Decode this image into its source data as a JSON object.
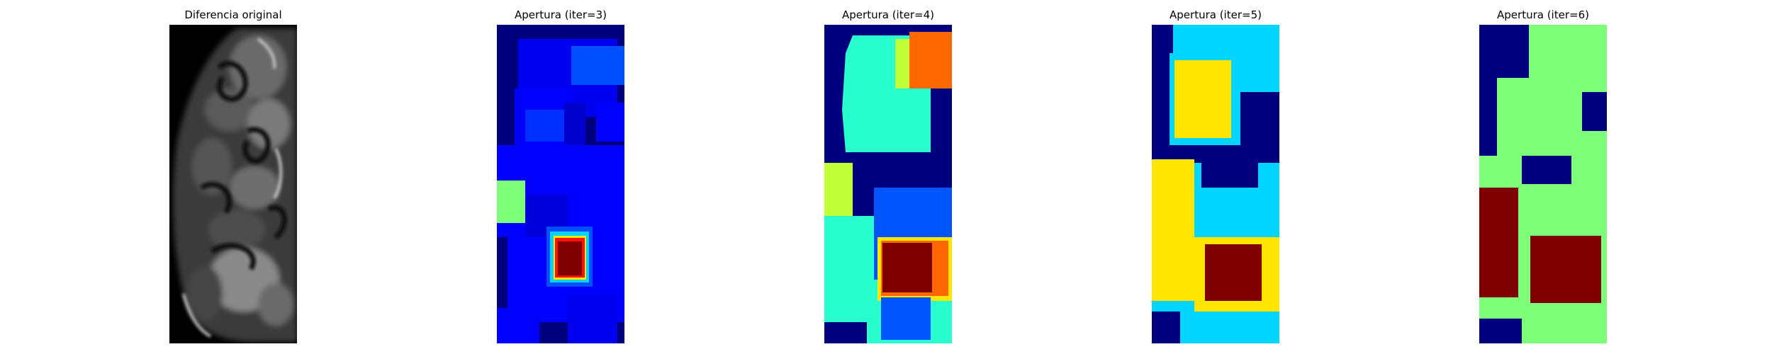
{
  "panels": [
    {
      "title": "Diferencia original",
      "colormap": "gray"
    },
    {
      "title": "Apertura (iter=3)",
      "colormap": "jet"
    },
    {
      "title": "Apertura (iter=4)",
      "colormap": "jet"
    },
    {
      "title": "Apertura (iter=5)",
      "colormap": "jet"
    },
    {
      "title": "Apertura (iter=6)",
      "colormap": "jet"
    }
  ],
  "colors": {
    "background": "#ffffff",
    "jet_dark_blue": "#00007f",
    "jet_blue": "#0000ff",
    "jet_mid_blue": "#0055ff",
    "jet_cyan": "#00d4ff",
    "jet_aqua": "#29ffce",
    "jet_green": "#7dff7a",
    "jet_yellow_green": "#c1ff36",
    "jet_yellow": "#ffe500",
    "jet_orange": "#ff6800",
    "jet_red": "#ff1300",
    "jet_dark_red": "#7f0000"
  }
}
